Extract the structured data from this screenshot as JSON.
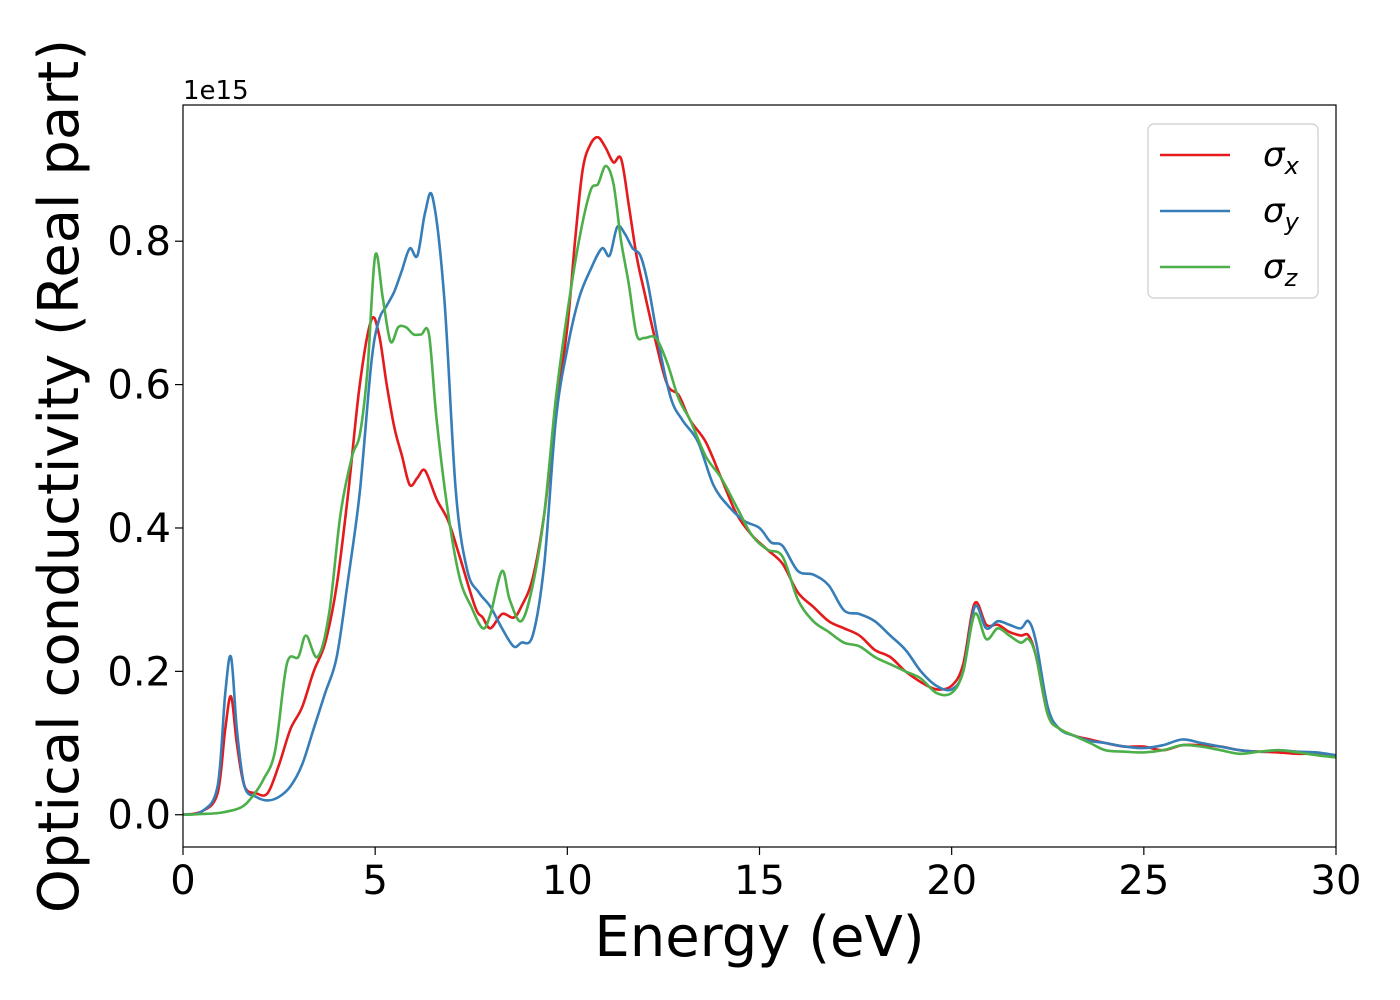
{
  "chart_data": {
    "type": "line",
    "xlabel": "Energy (eV)",
    "ylabel": "Optical conductivity (Real part)",
    "y_offset_label": "1e15",
    "xlim": [
      0,
      30
    ],
    "ylim": [
      -0.045,
      0.99
    ],
    "x_ticks": [
      0,
      5,
      10,
      15,
      20,
      25,
      30
    ],
    "x_tick_labels": [
      "0",
      "5",
      "10",
      "15",
      "20",
      "25",
      "30"
    ],
    "y_ticks": [
      0.0,
      0.2,
      0.4,
      0.6,
      0.8
    ],
    "y_tick_labels": [
      "0.0",
      "0.2",
      "0.4",
      "0.6",
      "0.8"
    ],
    "grid": false,
    "legend_position": "top-right",
    "series": [
      {
        "name": "σx",
        "symbol": "σ",
        "subscript": "x",
        "color": "#e41a1c",
        "x": [
          0,
          0.5,
          0.9,
          1.1,
          1.25,
          1.4,
          1.6,
          1.9,
          2.2,
          2.5,
          2.8,
          3.1,
          3.4,
          3.7,
          4.0,
          4.3,
          4.6,
          4.9,
          5.1,
          5.3,
          5.5,
          5.7,
          5.9,
          6.1,
          6.3,
          6.6,
          6.9,
          7.2,
          7.6,
          7.8,
          8.0,
          8.3,
          8.6,
          8.8,
          9.1,
          9.4,
          9.7,
          10.0,
          10.2,
          10.4,
          10.6,
          10.8,
          11.0,
          11.2,
          11.4,
          11.6,
          11.8,
          12.0,
          12.3,
          12.6,
          12.9,
          13.2,
          13.6,
          14.0,
          14.4,
          14.8,
          15.2,
          15.6,
          16.0,
          16.4,
          16.8,
          17.2,
          17.6,
          18.0,
          18.4,
          18.8,
          19.2,
          19.6,
          20.0,
          20.3,
          20.6,
          20.9,
          21.2,
          21.5,
          21.8,
          22.0,
          22.2,
          22.5,
          22.8,
          23.2,
          23.6,
          24.0,
          24.5,
          25.0,
          25.5,
          26.0,
          26.5,
          27.0,
          27.5,
          28.0,
          28.5,
          29.0,
          29.5,
          30.0
        ],
        "y": [
          0,
          0.005,
          0.03,
          0.12,
          0.165,
          0.1,
          0.04,
          0.03,
          0.03,
          0.07,
          0.12,
          0.15,
          0.2,
          0.24,
          0.32,
          0.45,
          0.6,
          0.69,
          0.67,
          0.6,
          0.54,
          0.5,
          0.46,
          0.47,
          0.48,
          0.44,
          0.41,
          0.36,
          0.29,
          0.275,
          0.26,
          0.28,
          0.275,
          0.29,
          0.33,
          0.42,
          0.56,
          0.68,
          0.8,
          0.9,
          0.935,
          0.945,
          0.93,
          0.91,
          0.915,
          0.85,
          0.78,
          0.73,
          0.66,
          0.6,
          0.585,
          0.55,
          0.52,
          0.47,
          0.42,
          0.39,
          0.37,
          0.35,
          0.31,
          0.29,
          0.27,
          0.26,
          0.25,
          0.23,
          0.22,
          0.2,
          0.185,
          0.175,
          0.18,
          0.21,
          0.295,
          0.265,
          0.265,
          0.255,
          0.25,
          0.25,
          0.22,
          0.14,
          0.12,
          0.11,
          0.105,
          0.1,
          0.095,
          0.095,
          0.09,
          0.097,
          0.097,
          0.095,
          0.09,
          0.088,
          0.087,
          0.085,
          0.085,
          0.08
        ]
      },
      {
        "name": "σy",
        "symbol": "σ",
        "subscript": "y",
        "color": "#377eb8",
        "x": [
          0,
          0.5,
          0.9,
          1.1,
          1.25,
          1.4,
          1.6,
          1.9,
          2.2,
          2.5,
          2.8,
          3.1,
          3.4,
          3.7,
          4.0,
          4.3,
          4.6,
          4.9,
          5.1,
          5.3,
          5.5,
          5.7,
          5.9,
          6.1,
          6.3,
          6.5,
          6.8,
          7.1,
          7.4,
          7.7,
          8.0,
          8.3,
          8.6,
          8.8,
          9.1,
          9.4,
          9.7,
          10.0,
          10.3,
          10.6,
          10.9,
          11.1,
          11.3,
          11.5,
          11.7,
          11.9,
          12.1,
          12.4,
          12.7,
          13.0,
          13.4,
          13.8,
          14.2,
          14.6,
          15.0,
          15.3,
          15.6,
          16.0,
          16.4,
          16.8,
          17.2,
          17.6,
          18.0,
          18.4,
          18.8,
          19.2,
          19.6,
          20.0,
          20.3,
          20.6,
          20.9,
          21.2,
          21.5,
          21.8,
          22.0,
          22.2,
          22.5,
          22.8,
          23.2,
          23.6,
          24.0,
          24.5,
          25.0,
          25.5,
          26.0,
          26.5,
          27.0,
          27.5,
          28.0,
          28.5,
          29.0,
          29.5,
          30.0
        ],
        "y": [
          0,
          0.005,
          0.04,
          0.17,
          0.22,
          0.12,
          0.04,
          0.025,
          0.02,
          0.025,
          0.04,
          0.07,
          0.12,
          0.17,
          0.22,
          0.33,
          0.45,
          0.63,
          0.69,
          0.71,
          0.73,
          0.76,
          0.79,
          0.78,
          0.84,
          0.86,
          0.72,
          0.45,
          0.34,
          0.31,
          0.29,
          0.26,
          0.235,
          0.24,
          0.25,
          0.35,
          0.55,
          0.65,
          0.72,
          0.76,
          0.79,
          0.78,
          0.82,
          0.81,
          0.79,
          0.78,
          0.74,
          0.65,
          0.58,
          0.55,
          0.52,
          0.46,
          0.43,
          0.41,
          0.4,
          0.38,
          0.375,
          0.34,
          0.335,
          0.32,
          0.285,
          0.28,
          0.27,
          0.25,
          0.23,
          0.2,
          0.18,
          0.175,
          0.2,
          0.29,
          0.26,
          0.27,
          0.265,
          0.26,
          0.27,
          0.24,
          0.15,
          0.12,
          0.11,
          0.103,
          0.1,
          0.095,
          0.093,
          0.097,
          0.105,
          0.1,
          0.095,
          0.09,
          0.088,
          0.09,
          0.088,
          0.087,
          0.083
        ]
      },
      {
        "name": "σz",
        "symbol": "σ",
        "subscript": "z",
        "color": "#4daf4a",
        "x": [
          0,
          0.5,
          1.0,
          1.5,
          1.8,
          2.1,
          2.4,
          2.7,
          3.0,
          3.2,
          3.5,
          3.8,
          4.1,
          4.4,
          4.6,
          4.8,
          5.0,
          5.2,
          5.4,
          5.6,
          5.8,
          6.0,
          6.2,
          6.4,
          6.6,
          6.9,
          7.2,
          7.5,
          7.8,
          8.0,
          8.3,
          8.5,
          8.8,
          9.1,
          9.4,
          9.7,
          10.0,
          10.3,
          10.6,
          10.8,
          11.0,
          11.2,
          11.4,
          11.6,
          11.8,
          12.0,
          12.3,
          12.6,
          12.9,
          13.2,
          13.6,
          14.0,
          14.4,
          14.8,
          15.2,
          15.6,
          16.0,
          16.4,
          16.8,
          17.2,
          17.6,
          18.0,
          18.4,
          18.8,
          19.2,
          19.6,
          20.0,
          20.3,
          20.6,
          20.9,
          21.2,
          21.5,
          21.8,
          22.0,
          22.2,
          22.5,
          22.8,
          23.2,
          23.6,
          24.0,
          24.5,
          25.0,
          25.5,
          26.0,
          26.5,
          27.0,
          27.5,
          28.0,
          28.5,
          29.0,
          29.5,
          30.0
        ],
        "y": [
          0,
          0.001,
          0.003,
          0.01,
          0.025,
          0.05,
          0.09,
          0.21,
          0.22,
          0.25,
          0.22,
          0.28,
          0.42,
          0.5,
          0.53,
          0.62,
          0.78,
          0.72,
          0.66,
          0.68,
          0.68,
          0.67,
          0.67,
          0.67,
          0.55,
          0.42,
          0.33,
          0.29,
          0.26,
          0.28,
          0.34,
          0.3,
          0.27,
          0.32,
          0.42,
          0.58,
          0.7,
          0.8,
          0.87,
          0.88,
          0.905,
          0.88,
          0.8,
          0.74,
          0.67,
          0.665,
          0.665,
          0.63,
          0.58,
          0.55,
          0.5,
          0.47,
          0.43,
          0.39,
          0.37,
          0.36,
          0.3,
          0.27,
          0.255,
          0.24,
          0.235,
          0.22,
          0.21,
          0.2,
          0.19,
          0.17,
          0.17,
          0.2,
          0.28,
          0.245,
          0.26,
          0.25,
          0.24,
          0.245,
          0.22,
          0.14,
          0.12,
          0.11,
          0.1,
          0.09,
          0.088,
          0.087,
          0.09,
          0.097,
          0.095,
          0.09,
          0.085,
          0.088,
          0.09,
          0.087,
          0.083,
          0.08
        ]
      }
    ]
  }
}
